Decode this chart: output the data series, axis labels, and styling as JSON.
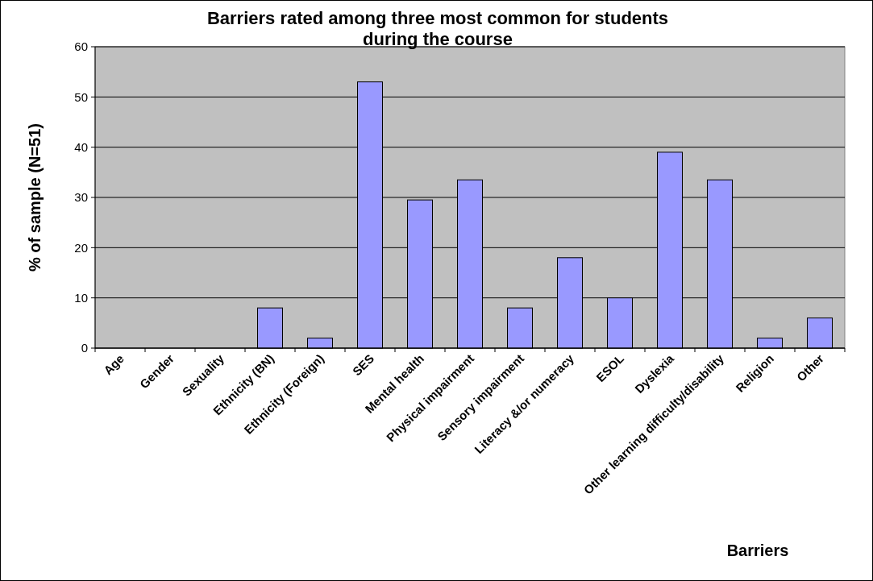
{
  "chart_data": {
    "type": "bar",
    "title": "Barriers rated among three most common for students during the course",
    "xlabel": "Barriers",
    "ylabel": "% of sample (N=51)",
    "categories": [
      "Age",
      "Gender",
      "Sexuality",
      "Ethnicity (BN)",
      "Ethnicity (Foreign)",
      "SES",
      "Mental health",
      "Physical impairment",
      "Sensory impairment",
      "Literacy &/or numeracy",
      "ESOL",
      "Dyslexia",
      "Other learning difficulty/disability",
      "Religion",
      "Other"
    ],
    "values": [
      0,
      0,
      0,
      8,
      2,
      53,
      29.5,
      33.5,
      8,
      18,
      10,
      39,
      33.5,
      2,
      6
    ],
    "color": "#9999ff",
    "ylim": [
      0,
      60
    ],
    "yticks": [
      0,
      10,
      20,
      30,
      40,
      50,
      60
    ],
    "grid": "y"
  }
}
